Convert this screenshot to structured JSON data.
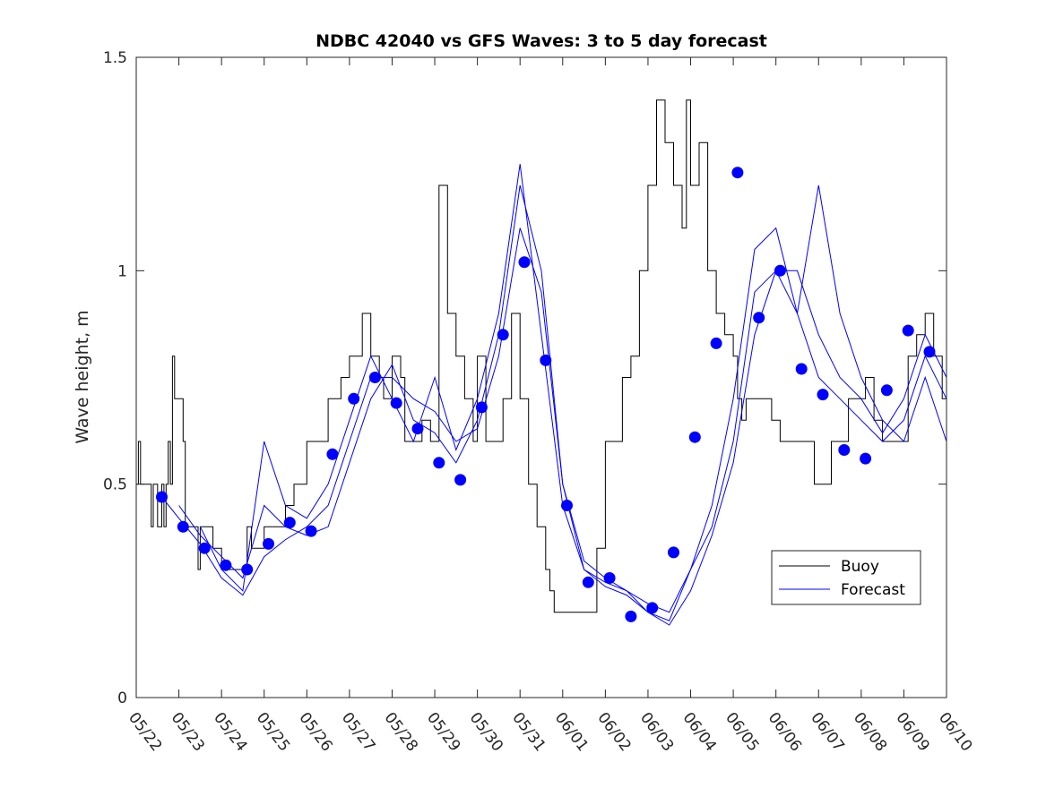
{
  "chart_data": {
    "type": "line",
    "title": "NDBC 42040 vs GFS Waves: 3 to 5 day forecast",
    "xlabel": "",
    "ylabel": "Wave height, m",
    "xlim": [
      "05/22",
      "06/10"
    ],
    "ylim": [
      0,
      1.5
    ],
    "y_ticks": [
      0,
      0.5,
      1,
      1.5
    ],
    "y_tick_labels": [
      "0",
      "0.5",
      "1",
      "1.5"
    ],
    "x_ticks": [
      "05/22",
      "05/23",
      "05/24",
      "05/25",
      "05/26",
      "05/27",
      "05/28",
      "05/29",
      "05/30",
      "05/31",
      "06/01",
      "06/02",
      "06/03",
      "06/04",
      "06/05",
      "06/06",
      "06/07",
      "06/08",
      "06/09",
      "06/10"
    ],
    "grid": false,
    "legend": {
      "position": "lower-right",
      "entries": [
        "Buoy",
        "Forecast"
      ]
    },
    "colors": {
      "buoy": "#000000",
      "forecast": "#0000ff",
      "markers": "#0000ff"
    },
    "series": [
      {
        "name": "Buoy",
        "x_days": [
          0,
          0.05,
          0.1,
          0.3,
          0.35,
          0.4,
          0.45,
          0.5,
          0.6,
          0.65,
          0.7,
          0.75,
          0.8,
          0.85,
          0.9,
          1.0,
          1.05,
          1.1,
          1.15,
          1.2,
          1.3,
          1.35,
          1.4,
          1.45,
          1.5,
          1.6,
          1.7,
          1.8,
          2.0,
          2.2,
          2.4,
          2.6,
          2.7,
          3.0,
          3.3,
          3.5,
          3.7,
          3.9,
          4.0,
          4.3,
          4.5,
          4.8,
          5.0,
          5.3,
          5.5,
          5.7,
          5.8,
          6.0,
          6.2,
          6.3,
          6.5,
          6.7,
          6.9,
          7.0,
          7.1,
          7.3,
          7.5,
          7.7,
          7.9,
          8.0,
          8.2,
          8.4,
          8.6,
          8.8,
          9.0,
          9.2,
          9.4,
          9.6,
          9.7,
          9.8,
          10.0,
          10.2,
          10.4,
          10.6,
          10.8,
          11.0,
          11.2,
          11.4,
          11.6,
          11.8,
          12.0,
          12.2,
          12.4,
          12.6,
          12.8,
          12.9,
          13.0,
          13.2,
          13.4,
          13.6,
          13.8,
          14.0,
          14.1,
          14.2,
          14.3,
          14.5,
          14.7,
          14.9,
          15.1,
          15.3,
          15.5,
          15.7,
          15.9,
          16.1,
          16.3,
          16.5,
          16.7,
          16.9,
          17.1,
          17.3,
          17.5,
          17.7,
          17.9,
          18.1,
          18.3,
          18.5,
          18.7,
          18.9,
          19.0
        ],
        "values": [
          0.5,
          0.6,
          0.5,
          0.5,
          0.4,
          0.5,
          0.5,
          0.4,
          0.5,
          0.4,
          0.5,
          0.6,
          0.5,
          0.8,
          0.7,
          0.7,
          0.7,
          0.6,
          0.4,
          0.4,
          0.4,
          0.4,
          0.4,
          0.3,
          0.4,
          0.4,
          0.4,
          0.35,
          0.3,
          0.3,
          0.3,
          0.4,
          0.35,
          0.4,
          0.4,
          0.45,
          0.5,
          0.5,
          0.6,
          0.6,
          0.7,
          0.75,
          0.8,
          0.9,
          0.8,
          0.75,
          0.7,
          0.8,
          0.75,
          0.6,
          0.6,
          0.65,
          0.6,
          0.6,
          1.2,
          0.9,
          0.8,
          0.7,
          0.6,
          0.8,
          0.6,
          0.6,
          0.7,
          0.9,
          0.7,
          0.5,
          0.4,
          0.3,
          0.25,
          0.2,
          0.2,
          0.2,
          0.2,
          0.2,
          0.35,
          0.6,
          0.6,
          0.75,
          0.8,
          1.0,
          1.2,
          1.4,
          1.3,
          1.2,
          1.1,
          1.4,
          1.2,
          1.3,
          1.0,
          0.9,
          0.85,
          0.8,
          0.7,
          0.65,
          0.7,
          0.7,
          0.7,
          0.65,
          0.6,
          0.6,
          0.6,
          0.6,
          0.5,
          0.5,
          0.6,
          0.6,
          0.7,
          0.7,
          0.75,
          0.65,
          0.6,
          0.6,
          0.6,
          0.8,
          0.85,
          0.9,
          0.8,
          0.7,
          0.7
        ]
      },
      {
        "name": "Forecast",
        "x_days": [
          0.6,
          1.0,
          1.5,
          2.0,
          2.5,
          3.0,
          3.5,
          4.0,
          4.5,
          5.0,
          5.5,
          6.0,
          6.5,
          7.0,
          7.5,
          8.0,
          8.5,
          9.0,
          9.5,
          10.0,
          10.5,
          11.0,
          11.5,
          12.0,
          12.5,
          13.0,
          13.5,
          14.0,
          14.5,
          15.0,
          15.5,
          16.0,
          16.5,
          17.0,
          17.5,
          18.0,
          18.5,
          19.0
        ],
        "values": [
          0.47,
          0.42,
          0.36,
          0.28,
          0.24,
          0.33,
          0.37,
          0.4,
          0.45,
          0.6,
          0.75,
          0.75,
          0.7,
          0.67,
          0.6,
          0.63,
          0.8,
          1.1,
          0.95,
          0.5,
          0.3,
          0.26,
          0.24,
          0.2,
          0.18,
          0.3,
          0.45,
          0.7,
          1.05,
          1.1,
          0.9,
          0.75,
          0.7,
          0.65,
          0.6,
          0.65,
          0.8,
          0.7
        ]
      },
      {
        "name": "",
        "x_days": [
          1.0,
          1.5,
          2.0,
          2.5,
          3.0,
          3.5,
          4.0,
          4.5,
          5.0,
          5.5,
          6.0,
          6.5,
          7.0,
          7.5,
          8.0,
          8.5,
          9.0,
          9.5,
          10.0,
          10.5,
          11.0,
          11.5,
          12.0,
          12.5,
          13.0,
          13.5,
          14.0,
          14.5,
          15.0,
          15.5,
          16.0,
          16.5,
          17.0,
          17.5,
          18.0,
          18.5,
          19.0
        ],
        "values": [
          0.45,
          0.38,
          0.33,
          0.28,
          0.45,
          0.4,
          0.38,
          0.4,
          0.55,
          0.7,
          0.78,
          0.65,
          0.62,
          0.55,
          0.65,
          0.85,
          1.2,
          1.0,
          0.5,
          0.32,
          0.28,
          0.25,
          0.2,
          0.17,
          0.25,
          0.38,
          0.55,
          0.85,
          1.0,
          1.0,
          0.85,
          0.75,
          0.7,
          0.62,
          0.7,
          0.85,
          0.75
        ]
      },
      {
        "name": "",
        "x_days": [
          1.5,
          2.0,
          2.5,
          3.0,
          3.5,
          4.0,
          4.5,
          5.0,
          5.5,
          6.0,
          6.5,
          7.0,
          7.5,
          8.0,
          8.5,
          9.0,
          9.5,
          10.0,
          10.5,
          11.0,
          11.5,
          12.0,
          12.5,
          13.0,
          13.5,
          14.0,
          14.5,
          15.0,
          15.5,
          16.0,
          16.5,
          17.0,
          17.5,
          18.0,
          18.5,
          19.0
        ],
        "values": [
          0.4,
          0.3,
          0.25,
          0.6,
          0.45,
          0.42,
          0.5,
          0.65,
          0.8,
          0.7,
          0.6,
          0.75,
          0.58,
          0.7,
          0.9,
          1.25,
          0.85,
          0.45,
          0.3,
          0.27,
          0.25,
          0.22,
          0.2,
          0.3,
          0.4,
          0.6,
          0.95,
          1.0,
          0.9,
          1.2,
          0.9,
          0.75,
          0.65,
          0.6,
          0.75,
          0.6
        ]
      }
    ],
    "markers": {
      "x_days": [
        0.6,
        1.1,
        1.6,
        2.1,
        2.6,
        3.1,
        3.6,
        4.1,
        4.6,
        5.1,
        5.6,
        6.1,
        6.6,
        7.1,
        7.6,
        8.1,
        8.6,
        9.1,
        9.6,
        10.1,
        10.6,
        11.1,
        11.6,
        12.1,
        12.6,
        13.1,
        13.6,
        14.1,
        14.6,
        15.1,
        15.6,
        16.1,
        16.6,
        17.1,
        17.6,
        18.1,
        18.6
      ],
      "values": [
        0.47,
        0.4,
        0.35,
        0.31,
        0.3,
        0.36,
        0.41,
        0.39,
        0.57,
        0.7,
        0.75,
        0.69,
        0.63,
        0.55,
        0.51,
        0.68,
        0.85,
        1.02,
        0.79,
        0.45,
        0.27,
        0.28,
        0.19,
        0.21,
        0.34,
        0.61,
        0.83,
        1.23,
        0.89,
        1.0,
        0.77,
        0.71,
        0.58,
        0.56,
        0.72,
        0.86,
        0.81
      ]
    }
  }
}
